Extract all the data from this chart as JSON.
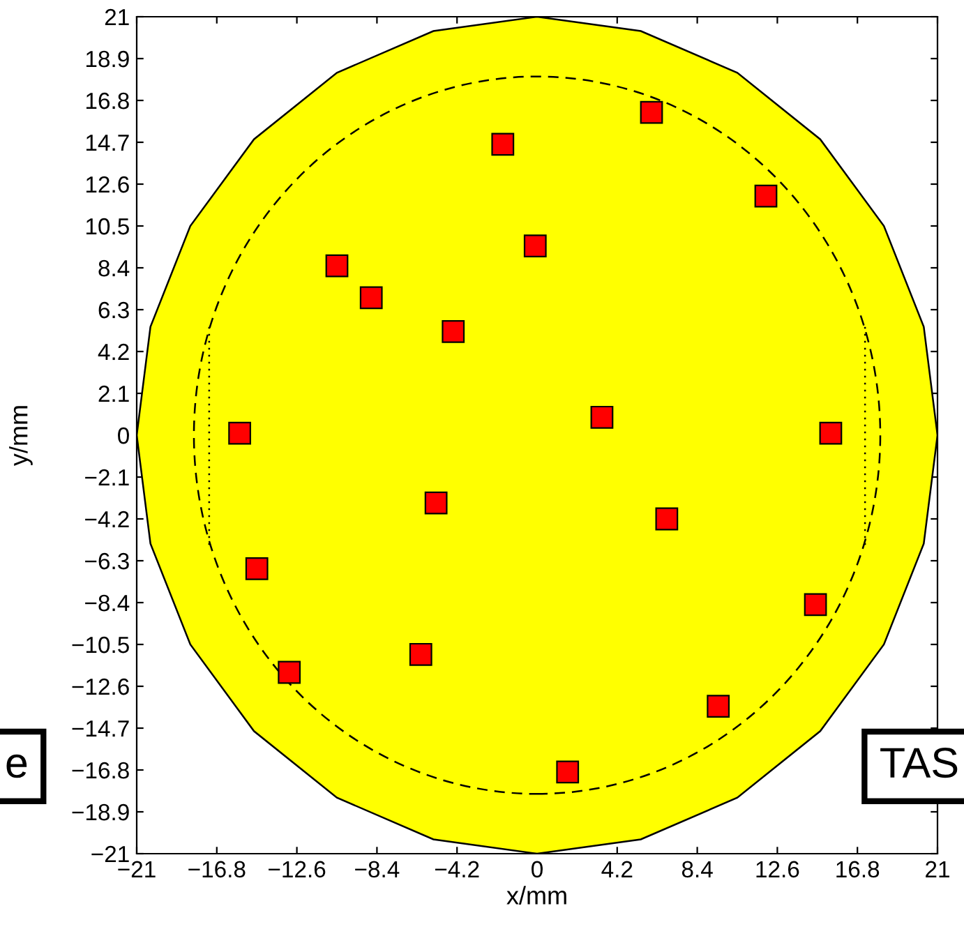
{
  "chart_data": {
    "type": "scatter",
    "xlabel": "x/mm",
    "ylabel": "y/mm",
    "xlim": [
      -21,
      21
    ],
    "ylim": [
      -21,
      21
    ],
    "xticks": [
      {
        "value": -21,
        "label": "−21"
      },
      {
        "value": -16.8,
        "label": "−16.8"
      },
      {
        "value": -12.6,
        "label": "−12.6"
      },
      {
        "value": -8.4,
        "label": "−8.4"
      },
      {
        "value": -4.2,
        "label": "−4.2"
      },
      0,
      4.2,
      8.4,
      12.6,
      16.8,
      21
    ],
    "yticks": [
      {
        "value": -21,
        "label": "−21"
      },
      {
        "value": -18.9,
        "label": "−18.9"
      },
      {
        "value": -16.8,
        "label": "−16.8"
      },
      {
        "value": -14.7,
        "label": "−14.7"
      },
      {
        "value": -12.6,
        "label": "−12.6"
      },
      {
        "value": -10.5,
        "label": "−10.5"
      },
      {
        "value": -8.4,
        "label": "−8.4"
      },
      {
        "value": -6.3,
        "label": "−6.3"
      },
      {
        "value": -4.2,
        "label": "−4.2"
      },
      {
        "value": -2.1,
        "label": "−2.1"
      },
      0,
      2.1,
      4.2,
      6.3,
      8.4,
      10.5,
      12.6,
      14.7,
      16.8,
      18.9,
      21
    ],
    "grid": false,
    "annotations": [
      "e",
      "TAS"
    ],
    "series": [
      {
        "type": "area",
        "color": "#ffff00",
        "x": [
          21,
          20.28,
          18.19,
          14.85,
          10.5,
          5.44,
          0,
          -5.44,
          -10.5,
          -14.85,
          -18.19,
          -20.28,
          -21,
          -20.28,
          -18.19,
          -14.85,
          -10.5,
          -5.44,
          0,
          5.44,
          10.5,
          14.85,
          18.19,
          20.28,
          21
        ],
        "values": [
          0,
          5.44,
          10.5,
          14.85,
          18.19,
          20.28,
          21,
          20.28,
          18.19,
          14.85,
          10.5,
          5.44,
          0,
          -5.44,
          -10.5,
          -14.85,
          -18.19,
          -20.28,
          -21,
          -20.28,
          -18.19,
          -14.85,
          -10.5,
          -5.44,
          0
        ]
      },
      {
        "type": "line",
        "color": "#000000",
        "line_style": "dotted",
        "x": [
          -17.2,
          -17.2
        ],
        "values": [
          -5.5,
          5.5
        ]
      },
      {
        "type": "line",
        "color": "#000000",
        "line_style": "dotted",
        "x": [
          17.2,
          17.2
        ],
        "values": [
          -5.5,
          5.5
        ]
      },
      {
        "color": "#ff0000",
        "marker": "square",
        "x": [
          -1.8,
          6.0,
          12.0,
          -0.1,
          -10.5,
          -8.7,
          -4.4,
          -15.6,
          3.4,
          15.4,
          -5.3,
          6.8,
          -14.7,
          14.6,
          -6.1,
          -13.0,
          9.5,
          1.6
        ],
        "values": [
          14.6,
          16.2,
          12.0,
          9.5,
          8.5,
          6.9,
          5.2,
          0.1,
          0.9,
          0.1,
          -3.4,
          -4.2,
          -6.7,
          -8.5,
          -11.0,
          -11.9,
          -13.6,
          -16.9
        ]
      }
    ]
  }
}
